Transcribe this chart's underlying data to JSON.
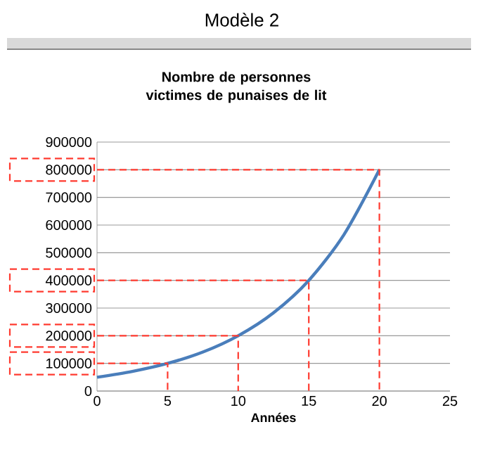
{
  "chart_data": {
    "type": "line",
    "title": "Nombre de personnes victimes de punaises de lit",
    "xlabel": "Années",
    "annotations": [
      "Modèle 2"
    ],
    "xlim": [
      0,
      25
    ],
    "xticks": [
      0,
      5,
      10,
      15,
      20,
      25
    ],
    "ylim": [
      0,
      900000
    ],
    "yticks": [
      0,
      100000,
      200000,
      300000,
      400000,
      500000,
      600000,
      700000,
      800000,
      900000
    ],
    "grid": "y",
    "marker": "none",
    "line_style": "solid",
    "series": [
      {
        "color": "#4a7ebb",
        "x": [
          0,
          2.5,
          5,
          7.5,
          10,
          12.5,
          15,
          17.5,
          20
        ],
        "values": [
          50000,
          71000,
          100000,
          141000,
          200000,
          283000,
          400000,
          566000,
          800000
        ]
      },
      {
        "color": "#ff3b30",
        "line_style": "dashed",
        "x": [
          0,
          5,
          5
        ],
        "values": [
          100000,
          100000,
          0
        ]
      },
      {
        "color": "#ff3b30",
        "line_style": "dashed",
        "x": [
          0,
          10,
          10
        ],
        "values": [
          200000,
          200000,
          0
        ]
      },
      {
        "color": "#ff3b30",
        "line_style": "dashed",
        "x": [
          0,
          15,
          15
        ],
        "values": [
          400000,
          400000,
          0
        ]
      },
      {
        "color": "#ff3b30",
        "line_style": "dashed",
        "x": [
          0,
          20,
          20
        ],
        "values": [
          800000,
          800000,
          0
        ]
      }
    ]
  }
}
